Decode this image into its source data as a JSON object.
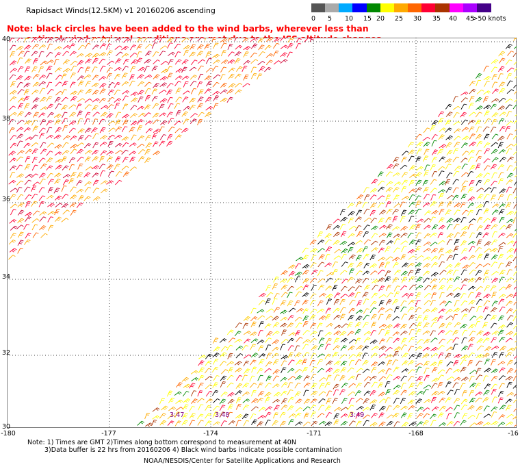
{
  "title": "Rapidsact Winds(12.5KM) v1 20160206 ascending",
  "note_line1": "Note: black circles have been added to the wind barbs, wherever less than",
  "note_line2": "optimal wind retrieval conditions are met due to the ISS altitude changes.",
  "scale": {
    "labels": [
      "0",
      "5",
      "10",
      "15",
      "20",
      "25",
      "30",
      "35",
      "40",
      "45",
      ">50 knots"
    ],
    "colors": [
      "#555555",
      "#aaaaaa",
      "#00aaff",
      "#0000ff",
      "#008800",
      "#ffff00",
      "#ffaa00",
      "#ff6600",
      "#ff0033",
      "#aa3300",
      "#ff00ff",
      "#aa00ff",
      "#440088"
    ]
  },
  "lat_labels": [
    "40",
    "38",
    "36",
    "34",
    "32",
    "30"
  ],
  "lon_labels": [
    "-180",
    "-177",
    "-174",
    "-171",
    "-168",
    "-16"
  ],
  "times": [
    "3:47",
    "3:48",
    "3:49"
  ],
  "footer_line1": "Note: 1) Times are GMT 2)Times along bottom correspond to measurement at 40N",
  "footer_line2": "3)Data buffer is 22 hrs from 20160206 4) Black wind barbs indicate possible contamination",
  "credit": "NOAA/NESDIS/Center for Satellite Applications and Research"
}
